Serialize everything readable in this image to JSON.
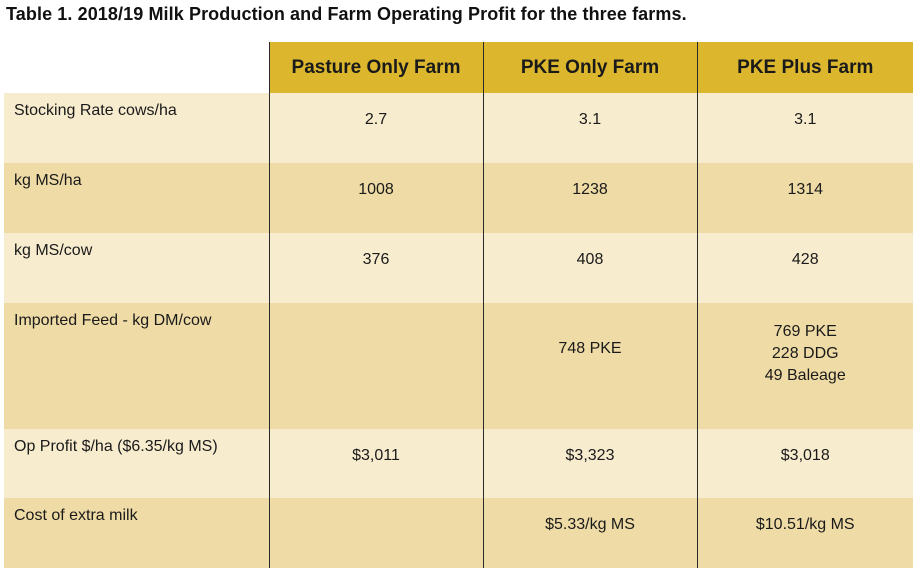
{
  "caption": "Table 1. 2018/19 Milk Production and Farm Operating Profit for the three farms.",
  "columns": [
    "Pasture Only Farm",
    "PKE Only Farm",
    "PKE Plus Farm"
  ],
  "rows": [
    {
      "label": "Stocking Rate cows/ha",
      "values": [
        "2.7",
        "3.1",
        "3.1"
      ]
    },
    {
      "label": "kg MS/ha",
      "values": [
        "1008",
        "1238",
        "1314"
      ]
    },
    {
      "label": "kg MS/cow",
      "values": [
        "376",
        "408",
        "428"
      ]
    },
    {
      "label": "Imported Feed - kg DM/cow",
      "values": [
        "",
        "748 PKE",
        [
          "769 PKE",
          "228 DDG",
          "49 Baleage"
        ]
      ]
    },
    {
      "label": "Op Profit $/ha ($6.35/kg MS)",
      "values": [
        "$3,011",
        "$3,323",
        "$3,018"
      ]
    },
    {
      "label": "Cost of extra milk",
      "values": [
        "",
        "$5.33/kg MS",
        "$10.51/kg MS"
      ]
    }
  ],
  "colors": {
    "header_fill": "#dcb72e",
    "row_light": "#f8eccf",
    "row_dark": "#efdba5",
    "divider": "#2a2a2a"
  }
}
